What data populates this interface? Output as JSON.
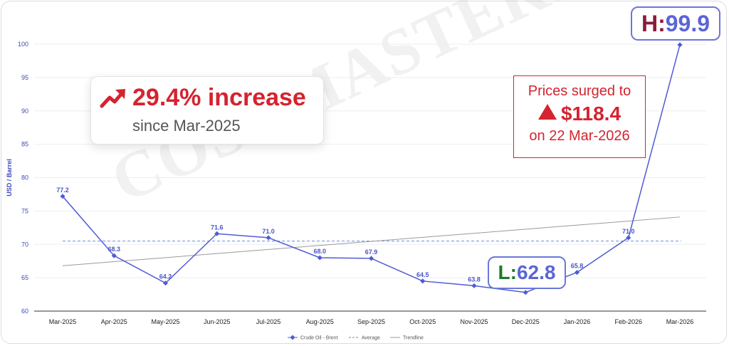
{
  "chart_data": {
    "type": "line",
    "ylabel": "USD / Barrel",
    "ylim": [
      60,
      100
    ],
    "yticks": [
      60,
      65,
      70,
      75,
      80,
      85,
      90,
      95,
      100
    ],
    "categories": [
      "Mar-2025",
      "Apr-2025",
      "May-2025",
      "Jun-2025",
      "Jul-2025",
      "Aug-2025",
      "Sep-2025",
      "Oct-2025",
      "Nov-2025",
      "Dec-2025",
      "Jan-2026",
      "Feb-2026",
      "Mar-2026"
    ],
    "series": [
      {
        "name": "Crude Oil - Brent",
        "values": [
          77.2,
          68.3,
          64.2,
          71.6,
          71.0,
          68.0,
          67.9,
          64.5,
          63.8,
          62.8,
          65.8,
          71.0,
          99.9
        ],
        "color": "#4f5bd5"
      }
    ],
    "data_labels": [
      "77.2",
      "68.3",
      "64.2",
      "71.6",
      "71.0",
      "68.0",
      "67.9",
      "64.5",
      "63.8",
      "",
      "65.8",
      "71.0",
      ""
    ],
    "average": {
      "name": "Average",
      "value": 70.5,
      "color": "#6a8fd8"
    },
    "trendline": {
      "name": "Trendline",
      "start": 66.8,
      "end": 74.1,
      "color": "#9a9a9a"
    },
    "grid": true,
    "legend_position": "bottom-center"
  },
  "annotations": {
    "increase": {
      "value": "29.4% increase",
      "since": "since Mar-2025",
      "color": "#d5232f"
    },
    "surge": {
      "line1": "Prices surged to",
      "value": "$118.4",
      "line3": "on 22 Mar-2026",
      "color": "#d5232f"
    },
    "high": {
      "key": "H:",
      "value": "99.9"
    },
    "low": {
      "key": "L:",
      "value": "62.8"
    }
  },
  "watermark": "COSTMASTERS"
}
